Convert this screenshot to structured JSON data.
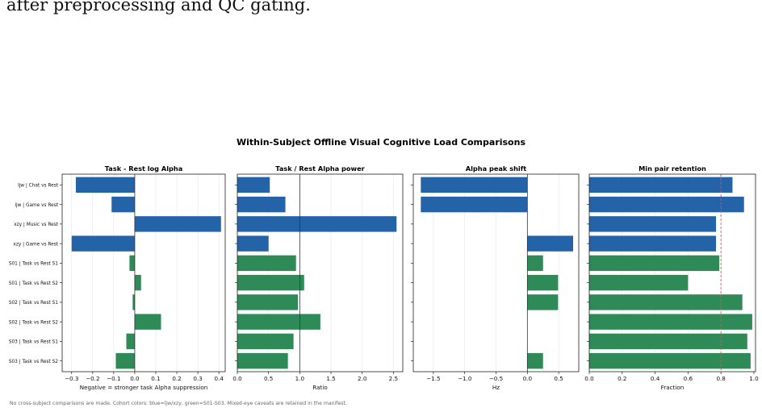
{
  "page": {
    "intro_text": "after preprocessing and QC gating.",
    "suptitle": "Within-Subject Offline Visual Cognitive Load Comparisons",
    "footnote": "No cross-subject comparisons are made. Cohort colors: blue=ljw/xzy, green=S01-S03. Mixed-eye caveats are retained in the manifest."
  },
  "colors": {
    "blue": "#2563a8",
    "green": "#2e8b57",
    "threshold": "#e05050"
  },
  "categories": [
    "ljw | Chat vs Rest",
    "ljw | Game vs Rest",
    "xzy | Music vs Rest",
    "xzy | Game vs Rest",
    "S01 | Task vs Rest S1",
    "S01 | Task vs Rest S2",
    "S02 | Task vs Rest S1",
    "S02 | Task vs Rest S2",
    "S03 | Task vs Rest S1",
    "S03 | Task vs Rest S2"
  ],
  "cohort": [
    "blue",
    "blue",
    "blue",
    "blue",
    "green",
    "green",
    "green",
    "green",
    "green",
    "green"
  ],
  "chart_data": [
    {
      "type": "bar",
      "orientation": "horizontal",
      "title": "Task - Rest log Alpha",
      "xlabel": "Negative = stronger task Alpha suppression",
      "xlim": [
        -0.345,
        0.43
      ],
      "xticks": [
        -0.3,
        -0.2,
        -0.1,
        0.0,
        0.1,
        0.2,
        0.3,
        0.4
      ],
      "tick_labels": [
        "−0.3",
        "−0.2",
        "−0.1",
        "0.0",
        "0.1",
        "0.2",
        "0.3",
        "0.4"
      ],
      "reference_line": 0,
      "values": [
        -0.28,
        -0.11,
        0.41,
        -0.3,
        -0.025,
        0.03,
        -0.01,
        0.125,
        -0.04,
        -0.09
      ]
    },
    {
      "type": "bar",
      "orientation": "horizontal",
      "title": "Task / Rest Alpha power",
      "xlabel": "Ratio",
      "xlim": [
        0,
        2.65
      ],
      "xticks": [
        0.0,
        0.5,
        1.0,
        1.5,
        2.0,
        2.5
      ],
      "tick_labels": [
        "0.0",
        "0.5",
        "1.0",
        "1.5",
        "2.0",
        "2.5"
      ],
      "reference_line": 1.0,
      "values": [
        0.52,
        0.77,
        2.55,
        0.5,
        0.94,
        1.07,
        0.97,
        1.33,
        0.9,
        0.81
      ]
    },
    {
      "type": "bar",
      "orientation": "horizontal",
      "title": "Alpha peak shift",
      "xlabel": "Hz",
      "xlim": [
        -1.82,
        0.82
      ],
      "xticks": [
        -1.5,
        -1.0,
        -0.5,
        0.0,
        0.5
      ],
      "tick_labels": [
        "−1.5",
        "−1.0",
        "−0.5",
        "0.0",
        "0.5"
      ],
      "reference_line": 0,
      "values": [
        -1.7,
        -1.7,
        0,
        0.73,
        0.25,
        0.49,
        0.49,
        0,
        0,
        0.25
      ]
    },
    {
      "type": "bar",
      "orientation": "horizontal",
      "title": "Min pair retention",
      "xlabel": "Fraction",
      "xlim": [
        0,
        1.01
      ],
      "xticks": [
        0.0,
        0.2,
        0.4,
        0.6,
        0.8,
        1.0
      ],
      "tick_labels": [
        "0.0",
        "0.2",
        "0.4",
        "0.6",
        "0.8",
        "1.0"
      ],
      "threshold_line": 0.8,
      "values": [
        0.87,
        0.94,
        0.77,
        0.77,
        0.79,
        0.6,
        0.93,
        0.99,
        0.96,
        0.98
      ]
    }
  ]
}
